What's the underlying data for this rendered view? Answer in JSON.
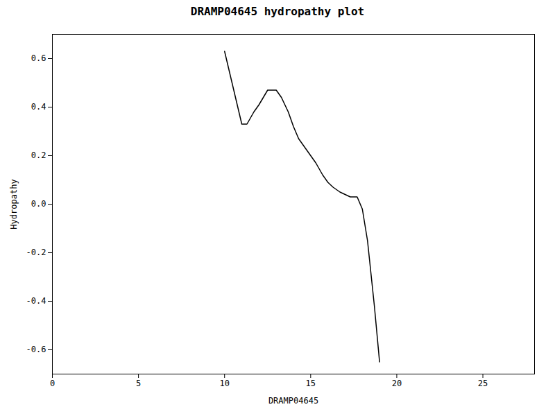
{
  "chart_data": {
    "type": "line",
    "title": "DRAMP04645 hydropathy plot",
    "xlabel": "DRAMP04645",
    "ylabel": "Hydropathy",
    "x": [
      10.0,
      11.0,
      11.3,
      11.7,
      12.0,
      12.5,
      13.0,
      13.3,
      13.7,
      14.0,
      14.3,
      14.7,
      15.0,
      15.3,
      15.7,
      16.0,
      16.3,
      16.7,
      17.0,
      17.3,
      17.5,
      17.7,
      18.0,
      18.3,
      18.7,
      19.0
    ],
    "values": [
      0.63,
      0.33,
      0.33,
      0.38,
      0.41,
      0.47,
      0.47,
      0.44,
      0.38,
      0.32,
      0.27,
      0.23,
      0.2,
      0.17,
      0.12,
      0.09,
      0.07,
      0.05,
      0.04,
      0.03,
      0.03,
      0.03,
      -0.02,
      -0.15,
      -0.42,
      -0.65
    ],
    "color": "#000000",
    "xlim": [
      0,
      28
    ],
    "ylim": [
      -0.7,
      0.7
    ],
    "xticks": [
      0,
      5,
      10,
      15,
      20,
      25
    ],
    "yticks": [
      -0.6,
      -0.4,
      -0.2,
      {
        "value": 0,
        "label": "0.0"
      },
      0.2,
      0.4,
      0.6
    ],
    "grid": false
  }
}
